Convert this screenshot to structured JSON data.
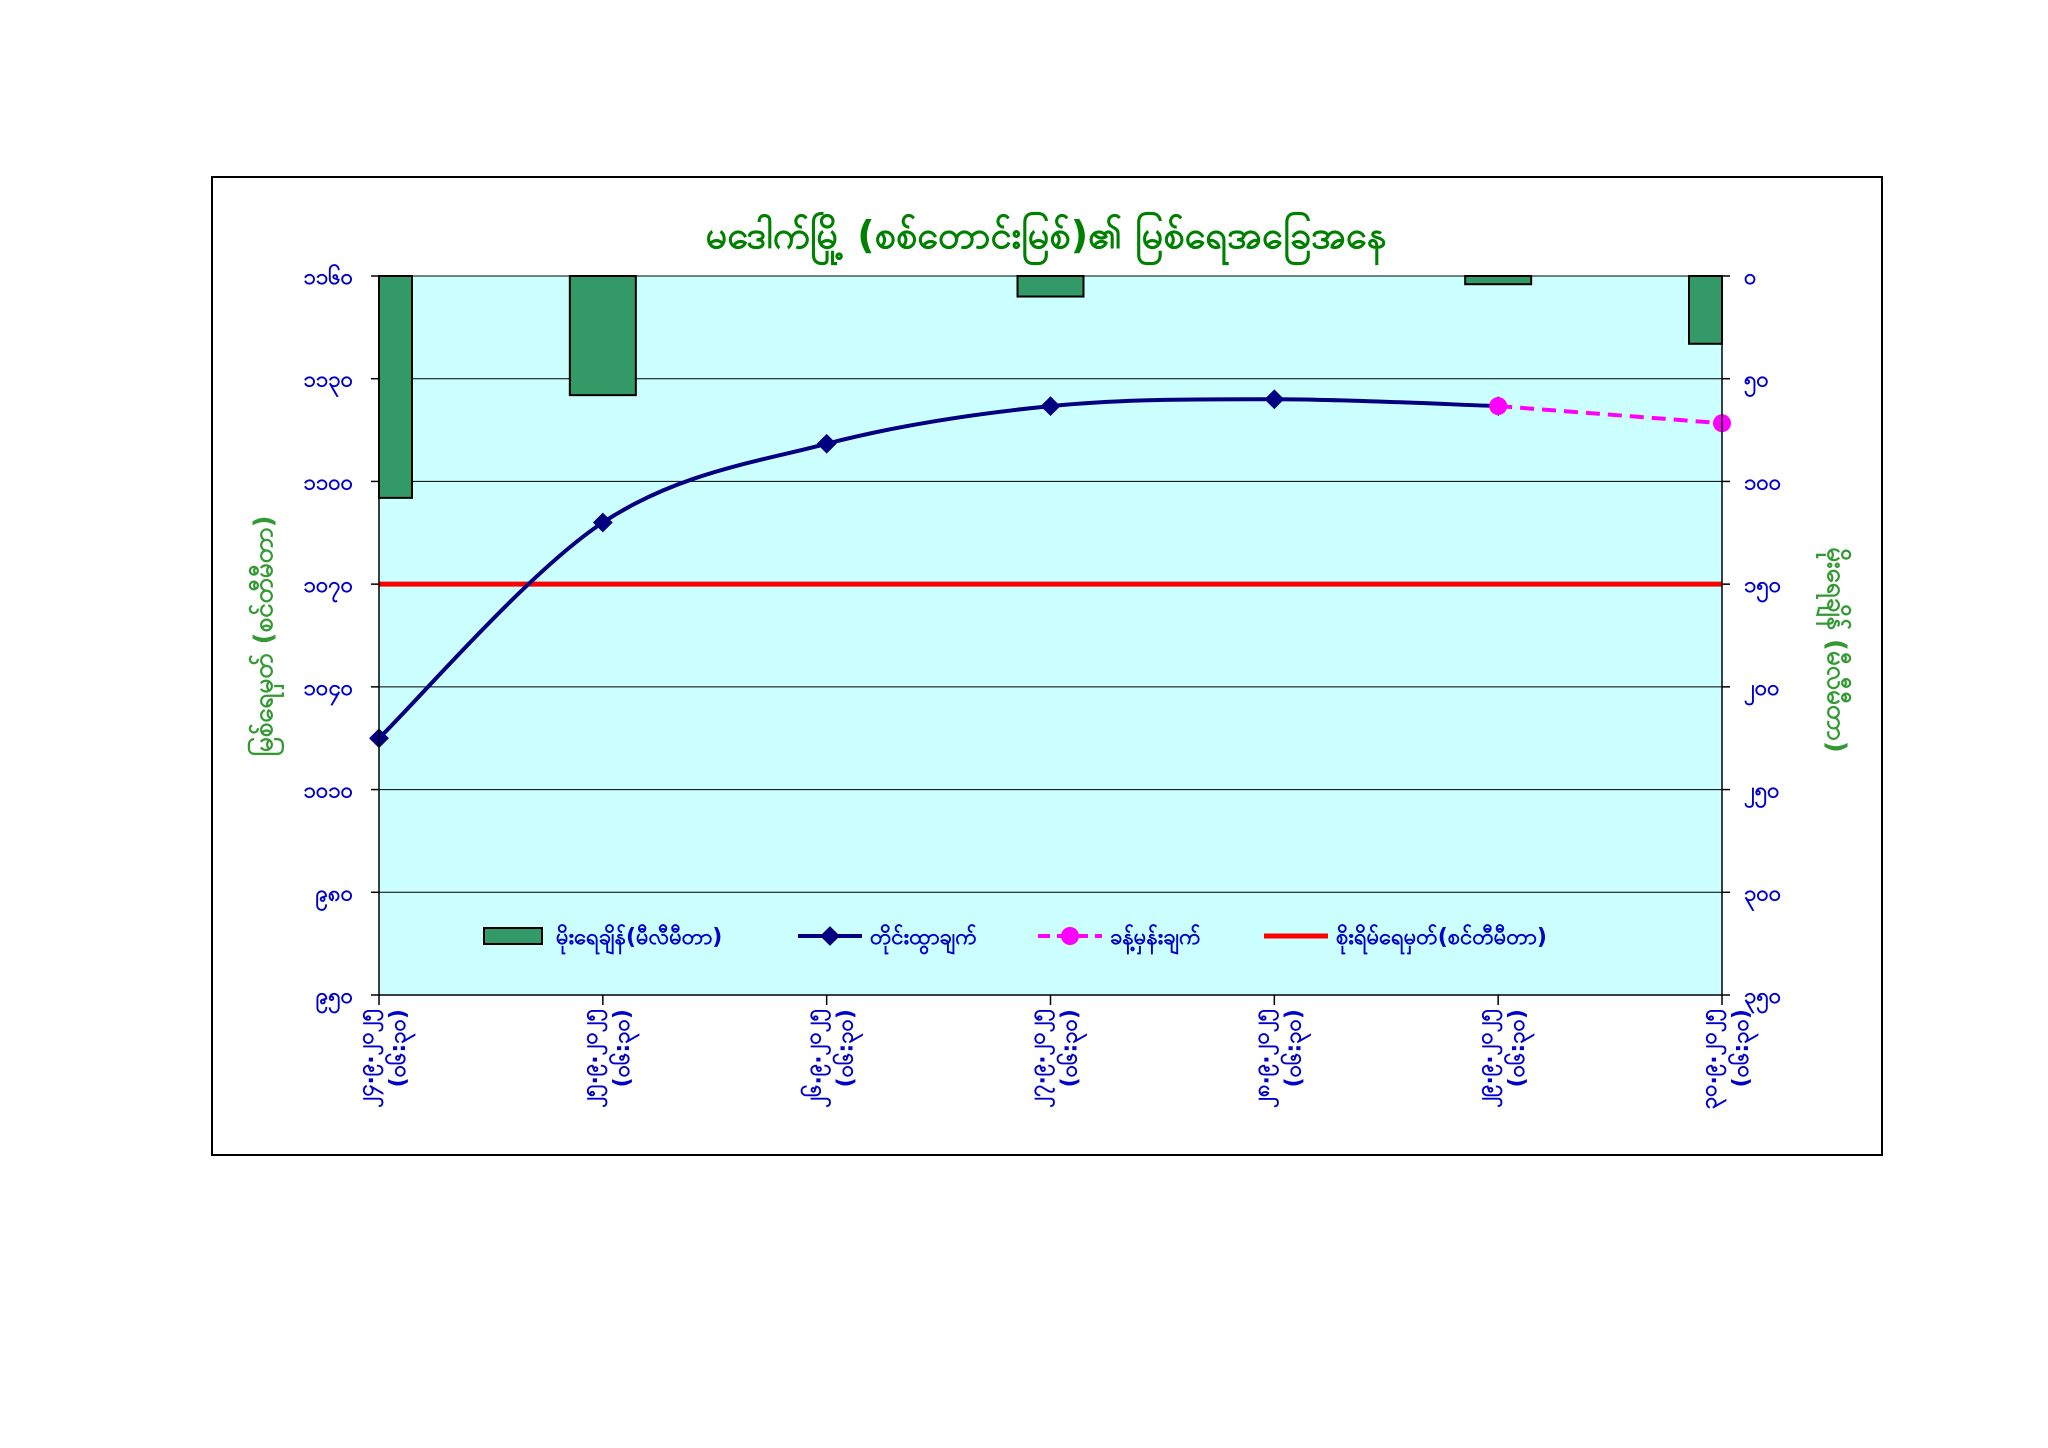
{
  "chart_data": {
    "type": "bar",
    "title": "မဒေါက်မြို့ (စစ်တောင်းမြစ်)၏ မြစ်ရေအခြေအနေ",
    "y_left_label": "မြစ်ရေမှတ် (စင်တီမီတာ)",
    "y_right_label": "မိုးရေချိန် (မီလီမီတာ)",
    "y_left_range": [
      950,
      1160
    ],
    "y_right_range": [
      0,
      350
    ],
    "y_left_ticks": [
      "၉၅၀",
      "၉၈၀",
      "၁၀၁၀",
      "၁၀၄၀",
      "၁၀၇၀",
      "၁၁၀၀",
      "၁၁၃၀",
      "၁၁၆၀"
    ],
    "y_right_ticks": [
      "၀",
      "၅၀",
      "၁၀၀",
      "၁၅၀",
      "၂၀၀",
      "၂၅၀",
      "၃၀၀",
      "၃၅၀"
    ],
    "y_left_tick_values": [
      950,
      980,
      1010,
      1040,
      1070,
      1100,
      1130,
      1160
    ],
    "y_right_tick_values": [
      0,
      50,
      100,
      150,
      200,
      250,
      300,
      350
    ],
    "categories": [
      {
        "line1": "၂၄.၉.၂၀၂၅",
        "line2": "(၀၆:၃၀)"
      },
      {
        "line1": "၂၅.၉.၂၀၂၅",
        "line2": "(၀၆:၃၀)"
      },
      {
        "line1": "၂၆.၉.၂၀၂၅",
        "line2": "(၀၆:၃၀)"
      },
      {
        "line1": "၂၇.၉.၂၀၂၅",
        "line2": "(၀၆:၃၀)"
      },
      {
        "line1": "၂၈.၉.၂၀၂၅",
        "line2": "(၀၆:၃၀)"
      },
      {
        "line1": "၂၉.၉.၂၀၂၅",
        "line2": "(၀၆:၃၀)"
      },
      {
        "line1": "၃၀.၉.၂၀၂၅",
        "line2": "(၀၆:၃၀)"
      }
    ],
    "series": [
      {
        "name": "မိုးရေချိန်(မီလီမီတာ)",
        "kind": "bar",
        "axis": "right",
        "values": [
          108,
          58,
          null,
          10,
          null,
          4,
          33
        ]
      },
      {
        "name": "တိုင်းထွာချက်",
        "kind": "line",
        "axis": "left",
        "values": [
          1025,
          1088,
          1111,
          1122,
          1124,
          1122,
          null
        ]
      },
      {
        "name": "ခန့်မှန်းချက်",
        "kind": "dashed-line",
        "axis": "left",
        "values": [
          null,
          null,
          null,
          null,
          null,
          1122,
          1117
        ]
      },
      {
        "name": "စိုးရိမ်ရေမှတ်(စင်တီမီတာ)",
        "kind": "threshold",
        "axis": "left",
        "value": 1070
      }
    ],
    "grid": true,
    "legend": "bottom-inside",
    "colors": {
      "plot_bg": "#ccffff",
      "bar": "#339966",
      "line": "#000080",
      "forecast": "#ff00ff",
      "threshold": "#ff0000",
      "title": "#008000",
      "axis_text": "#0000cc",
      "axis_title": "#339933"
    }
  }
}
